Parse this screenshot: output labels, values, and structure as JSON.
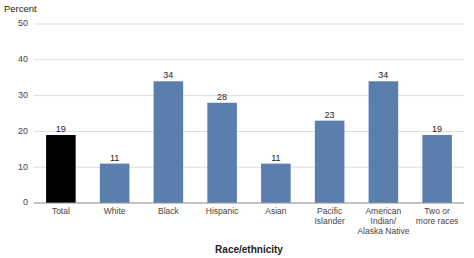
{
  "chart_data": {
    "type": "bar",
    "categories": [
      "Total",
      "White",
      "Black",
      "Hispanic",
      "Asian",
      "Pacific\nIslander",
      "American\nIndian/\nAlaska Native",
      "Two or\nmore races"
    ],
    "values": [
      19,
      11,
      34,
      28,
      11,
      23,
      34,
      19
    ],
    "colors": [
      "#000000",
      "#5b7fad",
      "#5b7fad",
      "#5b7fad",
      "#5b7fad",
      "#5b7fad",
      "#5b7fad",
      "#5b7fad"
    ],
    "y_label": "Percent",
    "x_label": "Race/ethnicity",
    "ylim": [
      0,
      50
    ],
    "yticks": [
      0,
      10,
      20,
      30,
      40,
      50
    ],
    "grid": true,
    "data_labels": true
  }
}
